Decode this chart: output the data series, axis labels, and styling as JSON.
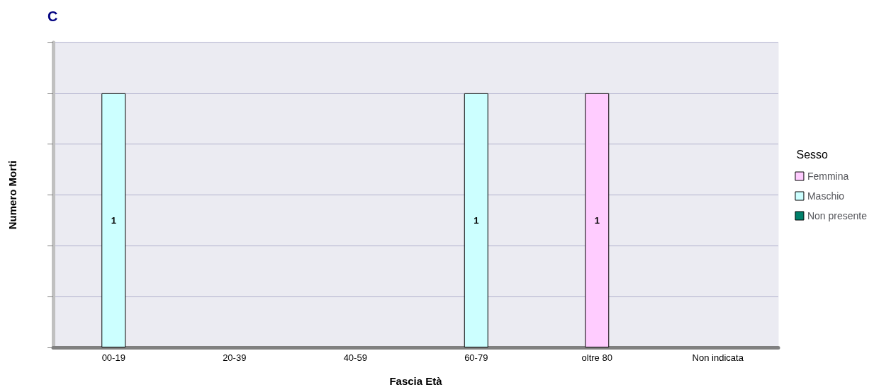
{
  "chart_data": {
    "type": "bar",
    "title": "C",
    "xlabel": "Fascia Età",
    "ylabel": "Numero Morti",
    "legend_title": "Sesso",
    "categories": [
      "00-19",
      "20-39",
      "40-59",
      "60-79",
      "oltre 80",
      "Non indicata"
    ],
    "series": [
      {
        "name": "Femmina",
        "color": "#ffccff",
        "values": [
          null,
          null,
          null,
          null,
          1,
          null
        ]
      },
      {
        "name": "Maschio",
        "color": "#ccffff",
        "values": [
          1,
          null,
          null,
          1,
          null,
          null
        ]
      },
      {
        "name": "Non presente",
        "color": "#00806a",
        "values": [
          null,
          null,
          null,
          null,
          null,
          null
        ]
      }
    ],
    "stacked": true,
    "ylim": [
      0,
      1.2
    ],
    "yticks": [
      {
        "value": 0,
        "label": null
      },
      {
        "value": 0.2,
        "label": null
      },
      {
        "value": 0.4,
        "label": null
      },
      {
        "value": 0.6,
        "label": null
      },
      {
        "value": 0.8,
        "label": null
      },
      {
        "value": 1,
        "label": null
      },
      {
        "value": 1.2,
        "label": null
      }
    ],
    "grid": "y",
    "legend": "right",
    "data_labels": true
  }
}
